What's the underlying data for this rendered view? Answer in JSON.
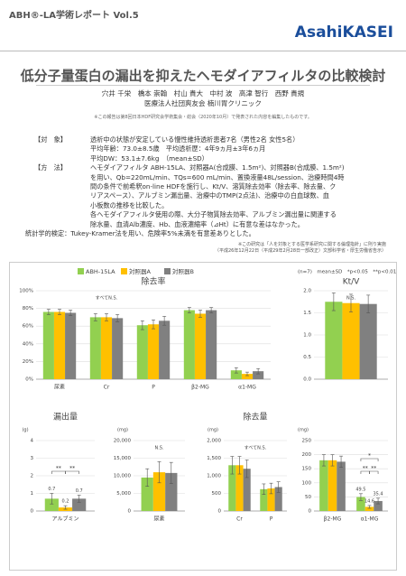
{
  "header": {
    "series": "ABH®-LA学術レポート Vol.5",
    "brand": "AsahiKASEI"
  },
  "title": "低分子量蛋白の漏出を抑えたヘモダイアフィルタの比較検討",
  "authors": "穴井 千栄　橋本 崇翰　村山 貴大　中村 波　高津 智行　西野 貴規",
  "affiliation": "医療法人社団爽友会 楠川胃クリニック",
  "note": "※この報告は第8回日本HDF研究会学術集会・総会（2020年10月）で発表された内容を編集したものです。",
  "methods": [
    {
      "label": "【対　象】",
      "lines": [
        "透析中の状態が安定している慢性維持透析患者7名（男性2名 女性5名）",
        "平均年齢：73.0±8.5歳　平均透析歴：4年9ヵ月±3年6ヵ月",
        "平均DW：53.1±7.6kg　（mean±SD）"
      ]
    },
    {
      "label": "【方　法】",
      "lines": [
        "ヘモダイアフィルタ ABH-15LA、対照器A(合成膜、1.5m²)、対照器B(合成膜、1.5m²)",
        "を用い、Qb=220mL/min、TQs=600 mL/min、置換液量48L/session、治療時間4時",
        "間の条件で前希釈on-line HDFを施行し、Kt/V、溶質除去効率（除去率、除去量、ク",
        "リアスペース）、アルブミン漏出量、治療中のTMP(2点法)、治療中の白血球数、血",
        "小板数の推移を比較した。",
        "各ヘモダイアフィルタ使用の際、大分子物質除去効率、アルブミン漏出量に関連する",
        "除水量、血清Alb濃度、Hb、血液濃縮率（⊿Ht）に有意な差はなかった。"
      ]
    },
    {
      "label": "統計学的検定：",
      "lines": [
        "Tukey-Kramer法を用い、危険率5%未満を有意差ありとした。"
      ]
    }
  ],
  "footnotes": [
    "※この研究は「人を対象とする医学系研究に関する倫理指針」に則り実施",
    "（平成26年12月22日（平成29年2月28日一部改正）文部科学省・厚生労働省告示）"
  ],
  "legend": [
    {
      "name": "ABH-15LA",
      "color": "#92d050"
    },
    {
      "name": "対照器A",
      "color": "#ffc000"
    },
    {
      "name": "対照器B",
      "color": "#808080"
    }
  ],
  "stats_note": "(n=7)　mean±SD　*p<0.05　**p<0.01",
  "chart_data": [
    {
      "type": "bar",
      "title": "除去率",
      "annotations": [
        "すべてN.S."
      ],
      "categories": [
        "尿素",
        "Cr",
        "P",
        "β2-MG",
        "α1-MG"
      ],
      "series": [
        {
          "values": [
            76,
            70,
            61,
            78,
            10
          ],
          "errors": [
            3,
            4,
            5,
            3,
            3
          ]
        },
        {
          "values": [
            76,
            70,
            62,
            74,
            6
          ],
          "errors": [
            3,
            4,
            5,
            4,
            2
          ]
        },
        {
          "values": [
            75,
            69,
            66,
            78,
            9
          ],
          "errors": [
            3,
            4,
            5,
            3,
            3
          ]
        }
      ],
      "ylim": [
        0,
        100
      ],
      "yticks": [
        {
          "value": 0,
          "label": "0%"
        },
        {
          "value": 20,
          "label": "20%"
        },
        {
          "value": 40,
          "label": "40%"
        },
        {
          "value": 60,
          "label": "60%"
        },
        {
          "value": 80,
          "label": "80%"
        },
        {
          "value": 100,
          "label": "100%"
        }
      ],
      "grid": true
    },
    {
      "type": "bar",
      "title": "Kt/V",
      "annotations": [
        "N.S."
      ],
      "categories": [
        null
      ],
      "series": [
        {
          "values": [
            1.75
          ],
          "errors": [
            0.2
          ]
        },
        {
          "values": [
            1.72
          ],
          "errors": [
            0.2
          ]
        },
        {
          "values": [
            1.7
          ],
          "errors": [
            0.2
          ]
        }
      ],
      "ylim": [
        0,
        2
      ],
      "yticks": [
        {
          "value": 0,
          "label": "0.0"
        },
        0.5,
        {
          "value": 1,
          "label": "1.0"
        },
        1.5,
        {
          "value": 2,
          "label": "2.0"
        }
      ],
      "grid": true
    },
    {
      "type": "bar",
      "title": "漏出量",
      "ylabel": "(g)",
      "significance": [
        "**",
        "**"
      ],
      "categories": [
        "アルブミン"
      ],
      "series": [
        {
          "values": [
            0.7
          ],
          "errors": [
            0.3
          ],
          "value_labels": [
            "0.7"
          ]
        },
        {
          "values": [
            0.2
          ],
          "errors": [
            0.1
          ],
          "value_labels": [
            "0.2"
          ]
        },
        {
          "values": [
            0.7
          ],
          "errors": [
            0.2
          ],
          "value_labels": [
            "0.7"
          ]
        }
      ],
      "ylim": [
        0,
        4
      ],
      "yticks": [
        0,
        1,
        2,
        3,
        4
      ],
      "grid": true
    },
    {
      "type": "bar",
      "ylabel": "(mg)",
      "annotations": [
        "N.S."
      ],
      "categories": [
        "尿素"
      ],
      "series": [
        {
          "values": [
            9500
          ],
          "errors": [
            2500
          ]
        },
        {
          "values": [
            11000
          ],
          "errors": [
            3000
          ]
        },
        {
          "values": [
            10800
          ],
          "errors": [
            3000
          ]
        }
      ],
      "ylim": [
        0,
        20000
      ],
      "yticks": [
        0,
        {
          "value": 5000,
          "label": "5,000"
        },
        {
          "value": 10000,
          "label": "10,000"
        },
        {
          "value": 15000,
          "label": "15,000"
        },
        {
          "value": 20000,
          "label": "20,000"
        }
      ],
      "grid": true
    },
    {
      "type": "bar",
      "title": "除去量",
      "ylabel": "(mg)",
      "annotations": [
        "すべてN.S."
      ],
      "categories": [
        "Cr",
        "P"
      ],
      "series": [
        {
          "values": [
            1300,
            620
          ],
          "errors": [
            250,
            150
          ]
        },
        {
          "values": [
            1300,
            640
          ],
          "errors": [
            250,
            150
          ]
        },
        {
          "values": [
            1200,
            680
          ],
          "errors": [
            250,
            150
          ]
        }
      ],
      "ylim": [
        0,
        2000
      ],
      "yticks": [
        0,
        500,
        {
          "value": 1000,
          "label": "1,000"
        },
        {
          "value": 1500,
          "label": "1,500"
        },
        {
          "value": 2000,
          "label": "2,000"
        }
      ],
      "grid": true
    },
    {
      "type": "bar",
      "ylabel": "(mg)",
      "significance": [
        "*",
        "**",
        "**"
      ],
      "categories": [
        "β2-MG",
        "α1-MG"
      ],
      "series": [
        {
          "values": [
            180,
            49.5
          ],
          "errors": [
            20,
            12
          ],
          "value_labels": [
            null,
            "49.5"
          ]
        },
        {
          "values": [
            180,
            14.6
          ],
          "errors": [
            20,
            5
          ],
          "value_labels": [
            null,
            "14.6"
          ]
        },
        {
          "values": [
            175,
            35.4
          ],
          "errors": [
            20,
            10
          ],
          "value_labels": [
            null,
            "35.4"
          ]
        }
      ],
      "ylim": [
        0,
        250
      ],
      "yticks": [
        0,
        50,
        100,
        150,
        200,
        250
      ],
      "grid": true
    }
  ]
}
